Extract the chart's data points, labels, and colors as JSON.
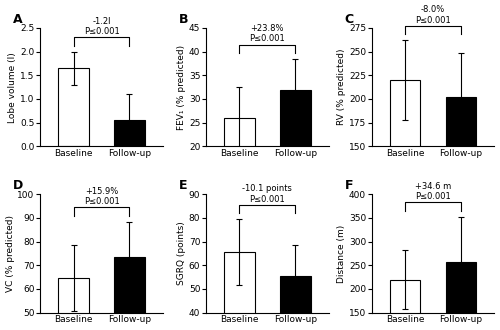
{
  "panels": [
    {
      "label": "A",
      "ylabel": "Lobe volume (l)",
      "baseline_mean": 1.65,
      "baseline_err": 0.35,
      "followup_mean": 0.55,
      "followup_err": 0.55,
      "ylim": [
        0,
        2.5
      ],
      "yticks": [
        0,
        0.5,
        1.0,
        1.5,
        2.0,
        2.5
      ],
      "annotation": "-1.2l",
      "pvalue": "P≤0.001"
    },
    {
      "label": "B",
      "ylabel": "FEV₁ (% predicted)",
      "baseline_mean": 26.0,
      "baseline_err": 6.5,
      "followup_mean": 32.0,
      "followup_err": 6.5,
      "ylim": [
        20,
        45
      ],
      "yticks": [
        20,
        25,
        30,
        35,
        40,
        45
      ],
      "annotation": "+23.8%",
      "pvalue": "P≤0.001"
    },
    {
      "label": "C",
      "ylabel": "RV (% predicted)",
      "baseline_mean": 220,
      "baseline_err": 42,
      "followup_mean": 202,
      "followup_err": 47,
      "ylim": [
        150,
        275
      ],
      "yticks": [
        150,
        175,
        200,
        225,
        250,
        275
      ],
      "annotation": "-8.0%",
      "pvalue": "P≤0.001"
    },
    {
      "label": "D",
      "ylabel": "VC (% predicted)",
      "baseline_mean": 64.5,
      "baseline_err": 14,
      "followup_mean": 73.5,
      "followup_err": 15,
      "ylim": [
        50,
        100
      ],
      "yticks": [
        50,
        60,
        70,
        80,
        90,
        100
      ],
      "annotation": "+15.9%",
      "pvalue": "P≤0.001"
    },
    {
      "label": "E",
      "ylabel": "SGRQ (points)",
      "baseline_mean": 65.5,
      "baseline_err": 14,
      "followup_mean": 55.5,
      "followup_err": 13,
      "ylim": [
        40,
        90
      ],
      "yticks": [
        40,
        50,
        60,
        70,
        80,
        90
      ],
      "annotation": "-10.1 points",
      "pvalue": "P≤0.001"
    },
    {
      "label": "F",
      "ylabel": "Distance (m)",
      "baseline_mean": 220,
      "baseline_err": 62,
      "followup_mean": 258,
      "followup_err": 95,
      "ylim": [
        150,
        400
      ],
      "yticks": [
        150,
        200,
        250,
        300,
        350,
        400
      ],
      "annotation": "+34.6 m",
      "pvalue": "P≤0.001"
    }
  ],
  "bar_colors": [
    "white",
    "black"
  ],
  "edge_color": "black",
  "xtick_labels": [
    "Baseline",
    "Follow-up"
  ],
  "bar_width": 0.55,
  "bar_positions": [
    0,
    1
  ]
}
